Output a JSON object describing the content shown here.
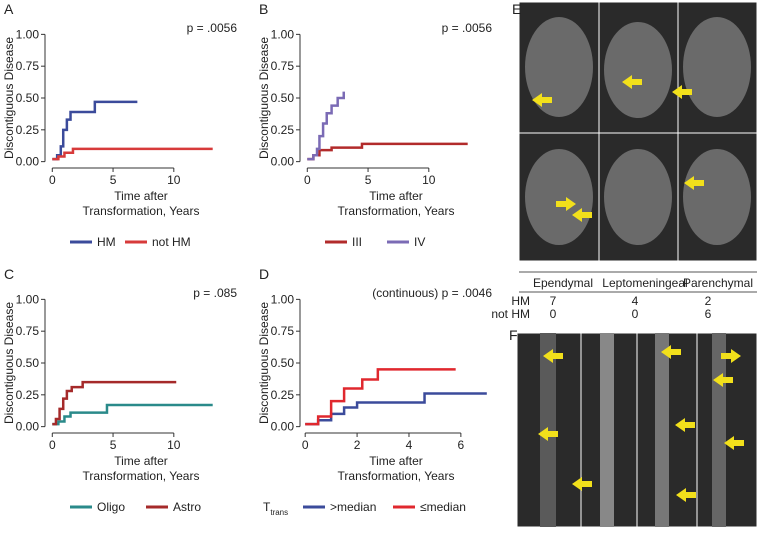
{
  "chart_data": [
    {
      "type": "step",
      "panel": "A",
      "annotation": "p = .0056",
      "ylabel": "Discontiguous Disease",
      "xlabel": [
        "Time after",
        "Transformation, Years"
      ],
      "xlim": [
        -0.6,
        15.2
      ],
      "xticks": [
        0,
        5,
        10
      ],
      "ylim": [
        -0.05,
        1.05
      ],
      "yticks": [
        {
          "value": 0,
          "label": "0.00"
        },
        {
          "value": 0.25,
          "label": "0.25"
        },
        {
          "value": 0.5,
          "label": "0.50"
        },
        {
          "value": 0.75,
          "label": "0.75"
        },
        {
          "value": 1,
          "label": "1.00"
        }
      ],
      "series": [
        {
          "name": "HM",
          "color": "#3b4b9b",
          "x": [
            0,
            0.4,
            0.7,
            0.9,
            1.2,
            1.5,
            3.5,
            7.0
          ],
          "values": [
            0.02,
            0.05,
            0.12,
            0.25,
            0.33,
            0.39,
            0.47,
            0.47
          ]
        },
        {
          "name": "not HM",
          "color": "#d73a3a",
          "x": [
            0,
            0.5,
            1.0,
            1.7,
            13.2
          ],
          "values": [
            0.02,
            0.04,
            0.07,
            0.1,
            0.1
          ]
        }
      ]
    },
    {
      "type": "step",
      "panel": "B",
      "annotation": "p = .0056",
      "ylabel": "Discontiguous Disease",
      "xlabel": [
        "Time after",
        "Transformation, Years"
      ],
      "xlim": [
        -0.6,
        15.2
      ],
      "xticks": [
        0,
        5,
        10
      ],
      "ylim": [
        -0.05,
        1.05
      ],
      "yticks": [
        {
          "value": 0,
          "label": "0.00"
        },
        {
          "value": 0.25,
          "label": "0.25"
        },
        {
          "value": 0.5,
          "label": "0.50"
        },
        {
          "value": 0.75,
          "label": "0.75"
        },
        {
          "value": 1,
          "label": "1.00"
        }
      ],
      "series": [
        {
          "name": "III",
          "color": "#b22b2b",
          "x": [
            0,
            0.5,
            1.0,
            2.0,
            4.5,
            13.2
          ],
          "values": [
            0.02,
            0.05,
            0.09,
            0.11,
            0.14,
            0.14
          ]
        },
        {
          "name": "IV",
          "color": "#7b6bb5",
          "x": [
            0,
            0.5,
            0.8,
            1.0,
            1.3,
            1.6,
            2.0,
            2.5,
            3.0
          ],
          "values": [
            0.02,
            0.05,
            0.1,
            0.2,
            0.3,
            0.38,
            0.44,
            0.5,
            0.55
          ]
        }
      ]
    },
    {
      "type": "step",
      "panel": "C",
      "annotation": "p = .085",
      "ylabel": "Discontiguous Disease",
      "xlabel": [
        "Time after",
        "Transformation, Years"
      ],
      "xlim": [
        -0.6,
        15.2
      ],
      "xticks": [
        0,
        5,
        10
      ],
      "ylim": [
        -0.05,
        1.05
      ],
      "yticks": [
        {
          "value": 0,
          "label": "0.00"
        },
        {
          "value": 0.25,
          "label": "0.25"
        },
        {
          "value": 0.5,
          "label": "0.50"
        },
        {
          "value": 0.75,
          "label": "0.75"
        },
        {
          "value": 1,
          "label": "1.00"
        }
      ],
      "series": [
        {
          "name": "Oligo",
          "color": "#2a8a8a",
          "x": [
            0,
            0.5,
            1.0,
            1.5,
            4.5,
            13.2
          ],
          "values": [
            0.02,
            0.04,
            0.08,
            0.11,
            0.17,
            0.17
          ]
        },
        {
          "name": "Astro",
          "color": "#a52a2a",
          "x": [
            0,
            0.3,
            0.6,
            0.9,
            1.2,
            1.6,
            2.5,
            10.2
          ],
          "values": [
            0.02,
            0.06,
            0.14,
            0.22,
            0.28,
            0.31,
            0.35,
            0.35
          ]
        }
      ]
    },
    {
      "type": "step",
      "panel": "D",
      "annotation": "(continuous) p = .0046",
      "ylabel": "Discontiguous Disease",
      "xlabel": [
        "Time after",
        "Transformation, Years"
      ],
      "xlim": [
        -0.2,
        7.2
      ],
      "xticks": [
        0,
        2,
        4,
        6
      ],
      "ylim": [
        -0.05,
        1.05
      ],
      "yticks": [
        {
          "value": 0,
          "label": "0.00"
        },
        {
          "value": 0.25,
          "label": "0.25"
        },
        {
          "value": 0.5,
          "label": "0.50"
        },
        {
          "value": 0.75,
          "label": "0.75"
        },
        {
          "value": 1,
          "label": "1.00"
        }
      ],
      "legend_title": "T",
      "legend_title_sub": "trans",
      "series": [
        {
          "name": ">median",
          "color": "#3b4b9b",
          "x": [
            0,
            0.5,
            1.0,
            1.5,
            2.0,
            4.6,
            7.0
          ],
          "values": [
            0.02,
            0.05,
            0.1,
            0.15,
            0.19,
            0.26,
            0.26
          ]
        },
        {
          "name": "≤median",
          "color": "#e0282e",
          "x": [
            0,
            0.5,
            1.0,
            1.5,
            2.2,
            2.8,
            5.8
          ],
          "values": [
            0.02,
            0.08,
            0.2,
            0.3,
            0.37,
            0.45,
            0.45
          ]
        }
      ]
    }
  ],
  "panels": {
    "E": "E",
    "F": "F"
  },
  "table": {
    "header": [
      "Ependymal",
      "Leptomeningeal",
      "Parenchymal"
    ],
    "rows": [
      {
        "label": "HM",
        "values": [
          7,
          4,
          2
        ]
      },
      {
        "label": "not HM",
        "values": [
          0,
          0,
          6
        ]
      }
    ]
  }
}
